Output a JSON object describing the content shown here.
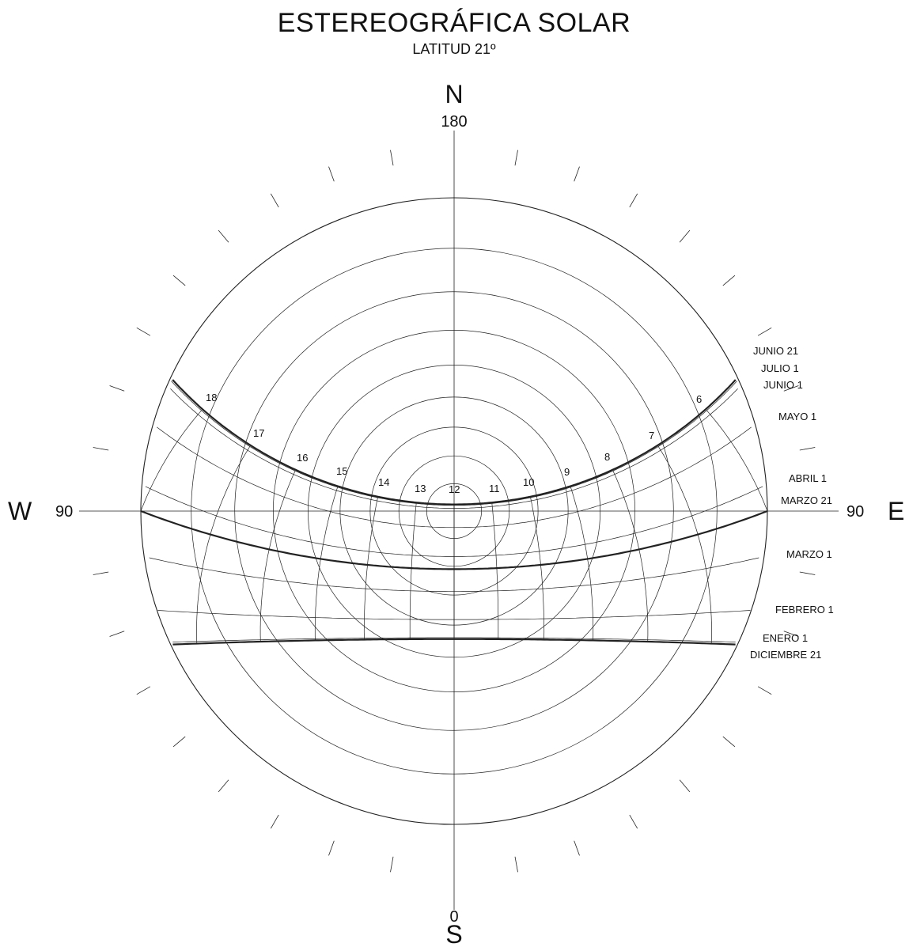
{
  "title": "ESTEREOGRÁFICA SOLAR",
  "subtitle": "LATITUD  21º",
  "compass": {
    "north": "N",
    "north_degree": "180",
    "south": "S",
    "south_degree": "0",
    "east": "E",
    "east_degree": "90",
    "west": "W",
    "west_degree": "90"
  },
  "hour_labels": [
    "6",
    "7",
    "8",
    "9",
    "10",
    "11",
    "12",
    "13",
    "14",
    "15",
    "16",
    "17",
    "18"
  ],
  "date_labels": [
    "JUNIO 21",
    "JULIO 1",
    "JUNIO 1",
    "MAYO 1",
    "ABRIL 1",
    "MARZO 21",
    "MARZO 1",
    "FEBRERO 1",
    "ENERO 1",
    "DICIEMBRE 21"
  ],
  "colors": {
    "line": "#222222",
    "text": "#111111",
    "background": "#ffffff"
  }
}
